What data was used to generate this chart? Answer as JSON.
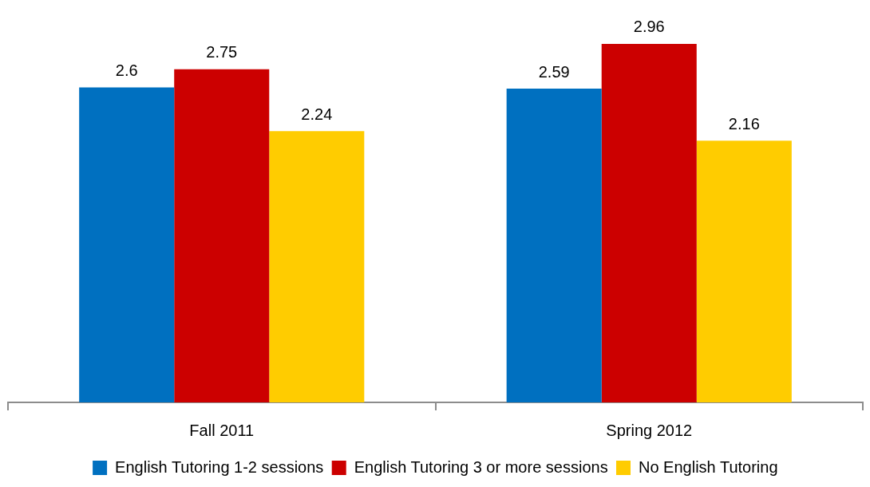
{
  "chart_data": {
    "type": "bar",
    "categories": [
      "Fall 2011",
      "Spring 2012"
    ],
    "series": [
      {
        "name": "English Tutoring 1-2 sessions",
        "color": "#0070c0",
        "values": [
          2.6,
          2.59
        ]
      },
      {
        "name": "English Tutoring 3 or more sessions",
        "color": "#cc0000",
        "values": [
          2.75,
          2.96
        ]
      },
      {
        "name": "No English Tutoring",
        "color": "#ffcc00",
        "values": [
          2.24,
          2.16
        ]
      }
    ],
    "data_labels": true,
    "legend": "bottom"
  }
}
